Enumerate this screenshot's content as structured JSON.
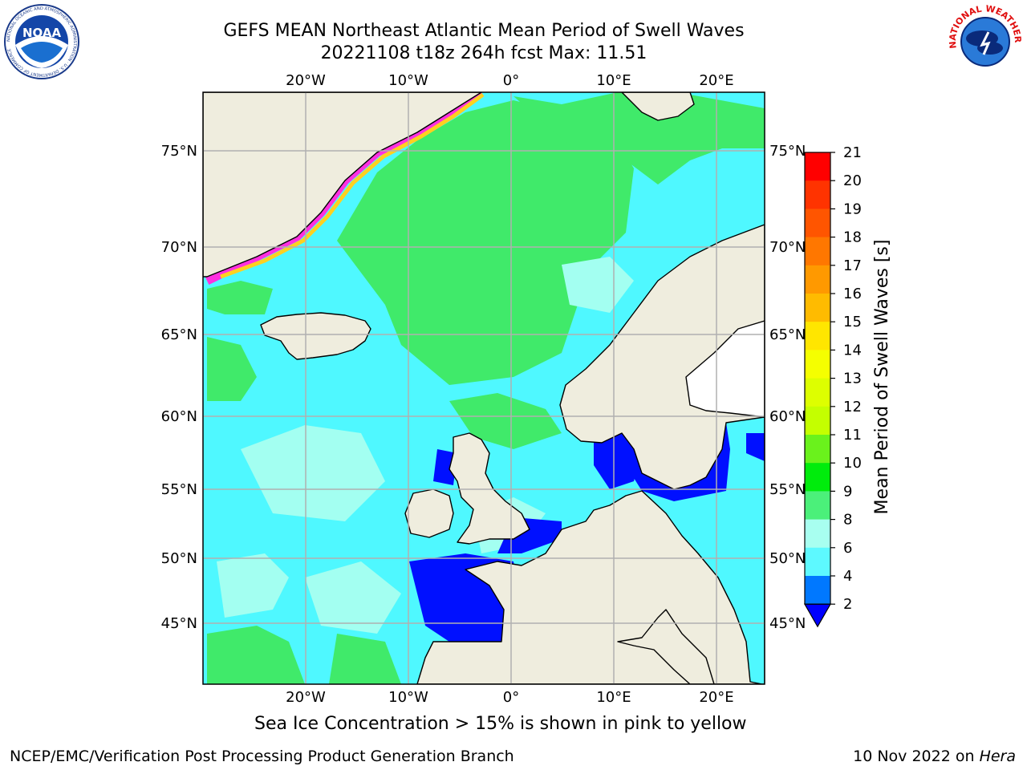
{
  "header": {
    "title_line1": "GEFS MEAN Northeast Atlantic Mean Period of Swell Waves",
    "title_line2": "20221108 t18z 264h fcst   Max: 11.51"
  },
  "logos": {
    "left": {
      "name": "NOAA",
      "ring_text": "NATIONAL OCEANIC AND ATMOSPHERIC ADMINISTRATION · U.S. DEPARTMENT OF COMMERCE"
    },
    "right": {
      "ring_text": "NATIONAL WEATHER SERVICE"
    }
  },
  "map": {
    "lon_labels": [
      "20°W",
      "10°W",
      "0°",
      "10°E",
      "20°E"
    ],
    "lat_labels": [
      "75°N",
      "70°N",
      "65°N",
      "60°N",
      "55°N",
      "50°N",
      "45°N"
    ],
    "colors": {
      "land": "#efedde",
      "ocean_base": "#4ff8ff",
      "green": "#40ea6a",
      "light": "#a3fff1",
      "blue": "#0010ff",
      "grid": "#b0b0b0"
    }
  },
  "colorbar": {
    "label": "Mean Period of Swell Waves [s]",
    "ticks": [
      "21",
      "20",
      "19",
      "18",
      "17",
      "16",
      "15",
      "14",
      "13",
      "12",
      "11",
      "10",
      "9",
      "8",
      "6",
      "4",
      "2"
    ],
    "colors": [
      "#ff0000",
      "#ff3300",
      "#ff5500",
      "#ff7700",
      "#ff9900",
      "#ffbb00",
      "#ffe600",
      "#f5ff00",
      "#ddff00",
      "#c4ff00",
      "#6af21c",
      "#00ec0c",
      "#4bf07a",
      "#a8fff0",
      "#5df9ff",
      "#00f0ff",
      "#0078ff"
    ],
    "extend_color": "#0000ff"
  },
  "caption": "Sea Ice Concentration > 15% is shown in pink to yellow",
  "footer": {
    "left": "NCEP/EMC/Verification Post Processing Product Generation Branch",
    "right_date": "10 Nov 2022 on",
    "right_host": "Hera"
  }
}
